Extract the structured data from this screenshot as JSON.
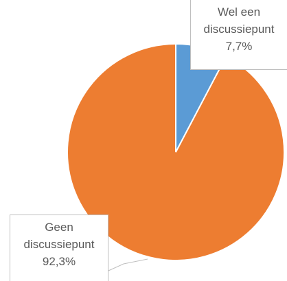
{
  "chart_data": {
    "type": "pie",
    "categories": [
      "Wel een discussiepunt",
      "Geen discussiepunt"
    ],
    "values": [
      7.7,
      92.3
    ],
    "value_labels": [
      "7,7%",
      "92,3%"
    ],
    "colors": [
      "#5b9bd5",
      "#ed7d31"
    ]
  }
}
